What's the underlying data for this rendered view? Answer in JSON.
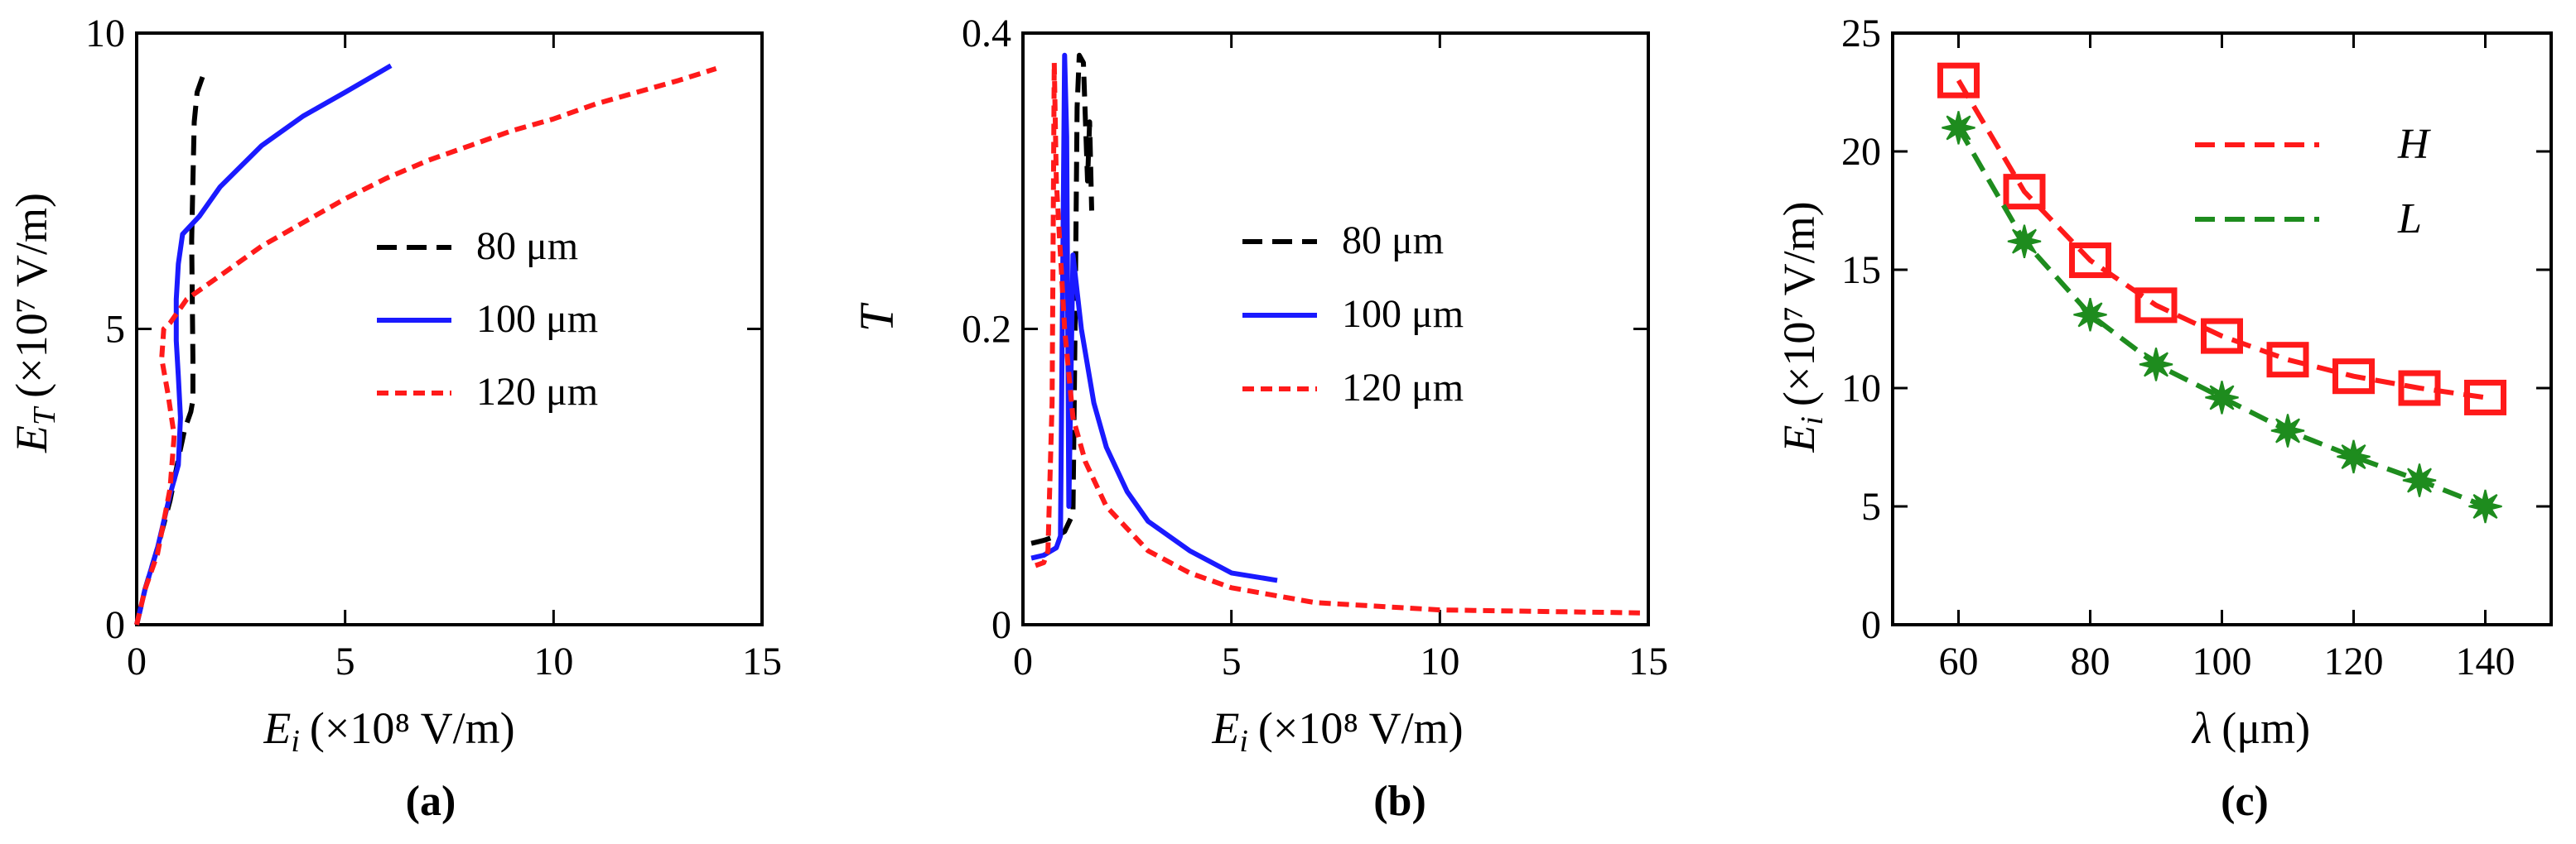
{
  "colors": {
    "black": "#000000",
    "blue": "#1a1aff",
    "red": "#ff1a1a",
    "green": "#1e8c1e"
  },
  "chart_data": [
    {
      "id": "a",
      "type": "line",
      "caption": "(a)",
      "xlabel_var": "E",
      "xlabel_sub": "i",
      "xlabel_unit": "(×10⁸ V/m)",
      "ylabel_var": "E",
      "ylabel_sub": "T",
      "ylabel_unit": "(×10⁷ V/m)",
      "xlim": [
        0,
        15
      ],
      "ylim": [
        0,
        10
      ],
      "xticks": [
        "0",
        "5",
        "10",
        "15"
      ],
      "yticks": [
        "0",
        "5",
        "10"
      ],
      "legend": [
        "80 μm",
        "100 μm",
        "120 μm"
      ],
      "series": [
        {
          "name": "80 μm",
          "color": "#000000",
          "dash": "24 12",
          "points": [
            [
              0,
              0
            ],
            [
              0.2,
              0.6
            ],
            [
              0.5,
              1.3
            ],
            [
              0.8,
              2.1
            ],
            [
              1.0,
              2.8
            ],
            [
              1.15,
              3.3
            ],
            [
              1.3,
              3.6
            ],
            [
              1.35,
              3.8
            ],
            [
              1.35,
              4.5
            ],
            [
              1.32,
              6.5
            ],
            [
              1.35,
              7.5
            ],
            [
              1.38,
              8.5
            ],
            [
              1.45,
              9.0
            ],
            [
              1.55,
              9.2
            ],
            [
              1.65,
              9.4
            ]
          ]
        },
        {
          "name": "100 μm",
          "color": "#1a1aff",
          "dash": "",
          "points": [
            [
              0,
              0
            ],
            [
              0.2,
              0.6
            ],
            [
              0.5,
              1.3
            ],
            [
              0.8,
              2.2
            ],
            [
              1.0,
              2.7
            ],
            [
              1.05,
              3.5
            ],
            [
              1.0,
              4.2
            ],
            [
              0.95,
              4.8
            ],
            [
              0.95,
              5.5
            ],
            [
              1.0,
              6.1
            ],
            [
              1.1,
              6.6
            ],
            [
              1.5,
              6.9
            ],
            [
              2.0,
              7.4
            ],
            [
              3.0,
              8.1
            ],
            [
              4.0,
              8.6
            ],
            [
              5.0,
              9.0
            ],
            [
              6.1,
              9.45
            ]
          ]
        },
        {
          "name": "120 μm",
          "color": "#ff1a1a",
          "dash": "14 8",
          "points": [
            [
              0,
              0
            ],
            [
              0.2,
              0.6
            ],
            [
              0.5,
              1.2
            ],
            [
              0.8,
              2.3
            ],
            [
              0.9,
              3.2
            ],
            [
              0.75,
              3.9
            ],
            [
              0.6,
              4.5
            ],
            [
              0.65,
              5.0
            ],
            [
              0.8,
              5.1
            ],
            [
              1.2,
              5.5
            ],
            [
              2.0,
              5.9
            ],
            [
              3.0,
              6.4
            ],
            [
              4.0,
              6.8
            ],
            [
              5.0,
              7.2
            ],
            [
              6.0,
              7.55
            ],
            [
              7.0,
              7.85
            ],
            [
              8.0,
              8.1
            ],
            [
              9.0,
              8.35
            ],
            [
              10.0,
              8.55
            ],
            [
              11.0,
              8.8
            ],
            [
              12.0,
              9.0
            ],
            [
              13.0,
              9.2
            ],
            [
              13.9,
              9.4
            ]
          ]
        }
      ]
    },
    {
      "id": "b",
      "type": "line",
      "caption": "(b)",
      "xlabel_var": "E",
      "xlabel_sub": "i",
      "xlabel_unit": "(×10⁸ V/m)",
      "ylabel_var": "T",
      "ylabel_sub": "",
      "ylabel_unit": "",
      "xlim": [
        0,
        15
      ],
      "ylim": [
        0,
        0.4
      ],
      "xticks": [
        "0",
        "5",
        "10",
        "15"
      ],
      "yticks": [
        "0",
        "0.2",
        "0.4"
      ],
      "legend": [
        "80 μm",
        "100 μm",
        "120 μm"
      ],
      "series": [
        {
          "name": "80 μm",
          "color": "#000000",
          "dash": "24 12",
          "points": [
            [
              0.2,
              0.055
            ],
            [
              0.5,
              0.057
            ],
            [
              0.8,
              0.06
            ],
            [
              1.0,
              0.063
            ],
            [
              1.2,
              0.075
            ],
            [
              1.25,
              0.2
            ],
            [
              1.3,
              0.35
            ],
            [
              1.35,
              0.385
            ],
            [
              1.45,
              0.38
            ],
            [
              1.5,
              0.34
            ],
            [
              1.55,
              0.3
            ],
            [
              1.6,
              0.34
            ],
            [
              1.65,
              0.28
            ]
          ]
        },
        {
          "name": "100 μm",
          "color": "#1a1aff",
          "dash": "",
          "points": [
            [
              0.2,
              0.045
            ],
            [
              0.5,
              0.047
            ],
            [
              0.8,
              0.052
            ],
            [
              0.9,
              0.06
            ],
            [
              1.0,
              0.385
            ],
            [
              1.05,
              0.33
            ],
            [
              1.1,
              0.08
            ],
            [
              1.2,
              0.25
            ],
            [
              1.4,
              0.2
            ],
            [
              1.7,
              0.15
            ],
            [
              2.0,
              0.12
            ],
            [
              2.5,
              0.09
            ],
            [
              3.0,
              0.07
            ],
            [
              4.0,
              0.05
            ],
            [
              5.0,
              0.035
            ],
            [
              6.1,
              0.03
            ]
          ]
        },
        {
          "name": "120 μm",
          "color": "#ff1a1a",
          "dash": "14 8",
          "points": [
            [
              0.3,
              0.04
            ],
            [
              0.5,
              0.042
            ],
            [
              0.6,
              0.05
            ],
            [
              0.7,
              0.15
            ],
            [
              0.75,
              0.38
            ],
            [
              0.8,
              0.3
            ],
            [
              0.9,
              0.25
            ],
            [
              1.0,
              0.2
            ],
            [
              1.2,
              0.14
            ],
            [
              1.5,
              0.11
            ],
            [
              2.0,
              0.08
            ],
            [
              3.0,
              0.05
            ],
            [
              4.0,
              0.035
            ],
            [
              5.0,
              0.025
            ],
            [
              7.0,
              0.015
            ],
            [
              10.0,
              0.01
            ],
            [
              14.8,
              0.008
            ]
          ]
        }
      ]
    },
    {
      "id": "c",
      "type": "line",
      "caption": "(c)",
      "xlabel_var": "λ",
      "xlabel_sub": "",
      "xlabel_unit": "(μm)",
      "ylabel_var": "E",
      "ylabel_sub": "i",
      "ylabel_unit": "(×10⁷ V/m)",
      "xlim": [
        50,
        150
      ],
      "ylim": [
        0,
        25
      ],
      "xticks": [
        "60",
        "80",
        "100",
        "120",
        "140"
      ],
      "yticks": [
        "0",
        "5",
        "10",
        "15",
        "20",
        "25"
      ],
      "legend": [
        "H",
        "L"
      ],
      "series": [
        {
          "name": "H",
          "color": "#ff1a1a",
          "dash": "24 12",
          "marker": "square",
          "x": [
            60,
            70,
            80,
            90,
            100,
            110,
            120,
            130,
            140
          ],
          "y": [
            23.0,
            18.3,
            15.4,
            13.5,
            12.2,
            11.2,
            10.5,
            10.0,
            9.6
          ]
        },
        {
          "name": "L",
          "color": "#1e8c1e",
          "dash": "24 12",
          "marker": "star",
          "x": [
            60,
            70,
            80,
            90,
            100,
            110,
            120,
            130,
            140
          ],
          "y": [
            21.0,
            16.2,
            13.1,
            11.0,
            9.6,
            8.2,
            7.1,
            6.1,
            5.0
          ]
        }
      ]
    }
  ]
}
